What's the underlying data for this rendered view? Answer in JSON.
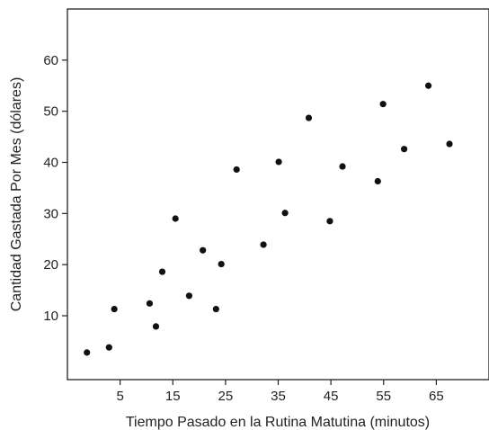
{
  "chart_data": {
    "type": "scatter",
    "title": "",
    "xlabel": "Tiempo Pasado en la Rutina Matutina (minutos)",
    "ylabel": "Cantidad Gastada Por Mes (dólares)",
    "xlim": [
      -5,
      75
    ],
    "ylim": [
      -2.5,
      70
    ],
    "xticks": [
      5,
      15,
      25,
      35,
      45,
      55,
      65
    ],
    "yticks": [
      10,
      20,
      30,
      40,
      50,
      60
    ],
    "xtick_labels": [
      "5",
      "15",
      "25",
      "35",
      "45",
      "55",
      "65"
    ],
    "ytick_labels": [
      "10",
      "20",
      "30",
      "40",
      "50",
      "60"
    ],
    "grid": false,
    "colors": {
      "points": "#111111",
      "axes": "#222222",
      "text": "#222222"
    },
    "series": [
      {
        "x": [
          -1.3,
          2.9,
          3.9,
          10.6,
          11.8,
          13.0,
          15.5,
          18.1,
          20.7,
          23.2,
          24.2,
          27.1,
          32.2,
          35.1,
          36.3,
          40.8,
          44.8,
          47.2,
          53.9,
          54.9,
          58.9,
          63.5,
          67.5
        ],
        "y": [
          2.8,
          3.8,
          11.3,
          12.4,
          7.9,
          18.6,
          29.0,
          13.9,
          22.8,
          11.3,
          20.1,
          38.6,
          23.9,
          40.1,
          30.1,
          48.7,
          28.5,
          39.2,
          36.3,
          51.4,
          42.6,
          55.0,
          43.6
        ]
      }
    ]
  }
}
